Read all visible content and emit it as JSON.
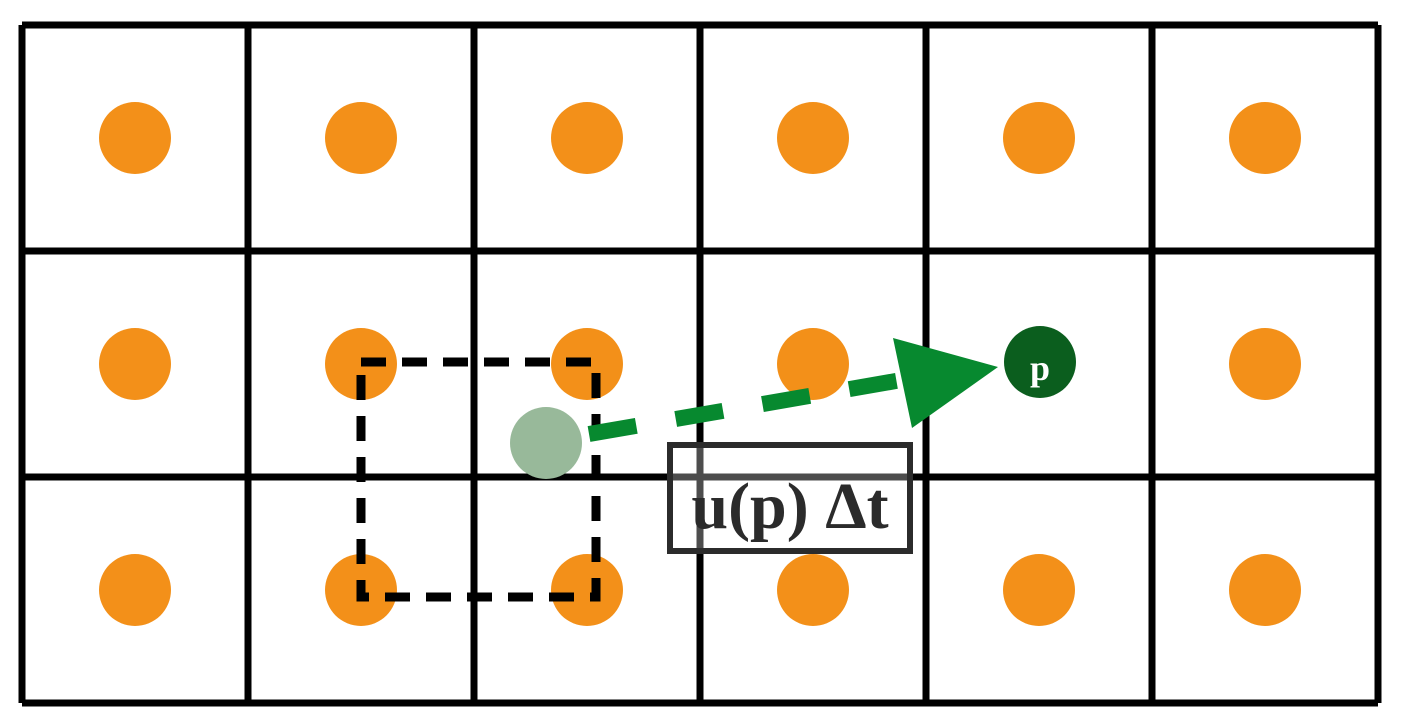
{
  "diagram": {
    "grid": {
      "rows": 3,
      "cols": 6
    },
    "colors": {
      "background": "#ffffff",
      "grid_line": "#000000",
      "sample_point": "#f39019",
      "particle": "#0b5e1e",
      "particle_label": "#ffffff",
      "previous_position": "#98b99a",
      "arrow": "#07892f",
      "interpolation_box": "#000000",
      "label_border": "#2b2b2b",
      "label_text": "#2b2b2b"
    },
    "particle_label": "p",
    "displacement_label": "u(p) Δt"
  }
}
